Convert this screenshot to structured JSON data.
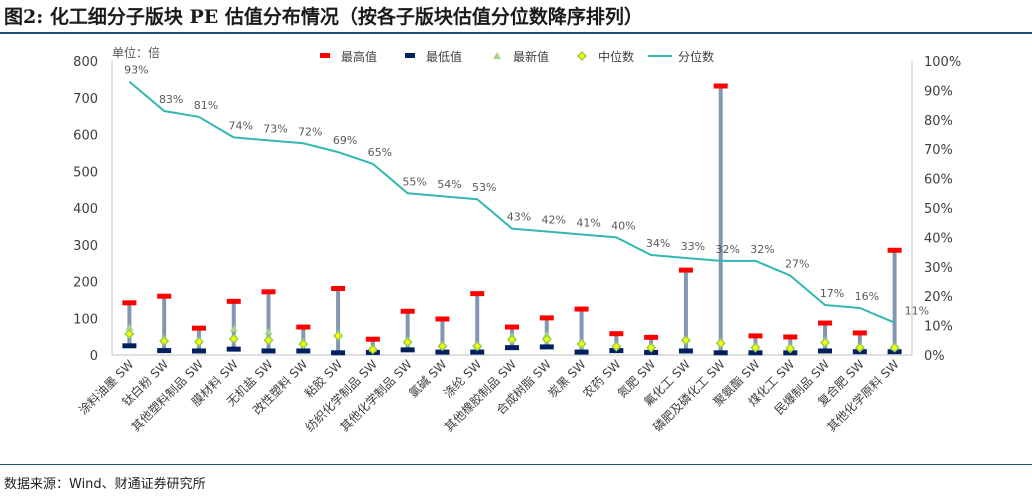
{
  "figure_title": "图2: 化工细分子版块 PE 估值分布情况（按各子版块估值分位数降序排列）",
  "source_note": "数据来源：Wind、财通证券研究所",
  "chart_data": {
    "type": "line",
    "unit_label": "单位：倍",
    "categories": [
      "涂料油墨 SW",
      "钛白粉 SW",
      "其他塑料制品 SW",
      "膜材料 SW",
      "无机盐 SW",
      "改性塑料 SW",
      "粘胶 SW",
      "纺织化学制品 SW",
      "其他化学制品 SW",
      "氯碱 SW",
      "涤纶 SW",
      "其他橡胶制品 SW",
      "合成树脂 SW",
      "炭黑 SW",
      "农药 SW",
      "氮肥 SW",
      "氟化工 SW",
      "磷肥及磷化工 SW",
      "聚氨酯 SW",
      "煤化工 SW",
      "民爆制品 SW",
      "复合肥 SW",
      "其他化学原料 SW"
    ],
    "left_axis": {
      "ylim": [
        0,
        800
      ],
      "ticks": [
        "0",
        "100",
        "200",
        "300",
        "400",
        "500",
        "600",
        "700",
        "800"
      ]
    },
    "right_axis": {
      "ylim": [
        0,
        100
      ],
      "ticks": [
        "0%",
        "10%",
        "20%",
        "30%",
        "40%",
        "50%",
        "60%",
        "70%",
        "80%",
        "90%",
        "100%"
      ]
    },
    "legend_placement": "top",
    "grid": false,
    "series": [
      {
        "name": "最高值",
        "axis": "left",
        "marker": "bar-dash",
        "color": "#ff0000",
        "values": [
          142,
          160,
          73,
          146,
          172,
          76,
          181,
          43,
          119,
          98,
          167,
          76,
          101,
          125,
          58,
          48,
          231,
          732,
          52,
          49,
          87,
          60,
          285
        ]
      },
      {
        "name": "最低值",
        "axis": "left",
        "marker": "bar-dash",
        "color": "#002060",
        "values": [
          25,
          12,
          11,
          16,
          11,
          11,
          6,
          7,
          14,
          8,
          8,
          20,
          22,
          8,
          12,
          7,
          11,
          6,
          6,
          6,
          11,
          9,
          9
        ]
      },
      {
        "name": "最新值",
        "axis": "left",
        "marker": "triangle",
        "color": "#a9d18e",
        "values": [
          74,
          45,
          40,
          71,
          63,
          36,
          58,
          16,
          40,
          26,
          25,
          51,
          55,
          33,
          27,
          22,
          43,
          37,
          24,
          23,
          40,
          23,
          21
        ]
      },
      {
        "name": "中位数",
        "axis": "left",
        "marker": "diamond",
        "color": "#92d050",
        "values": [
          57,
          38,
          36,
          44,
          40,
          30,
          52,
          15,
          35,
          24,
          24,
          42,
          43,
          30,
          23,
          20,
          40,
          32,
          20,
          18,
          34,
          20,
          20
        ]
      },
      {
        "name": "分位数",
        "axis": "right",
        "marker": "line",
        "color": "#33b8b0",
        "values": [
          93,
          83,
          81,
          74,
          73,
          72,
          69,
          65,
          55,
          54,
          53,
          43,
          42,
          41,
          40,
          34,
          33,
          32,
          32,
          27,
          17,
          16,
          11
        ],
        "labels": [
          "93%",
          "83%",
          "81%",
          "74%",
          "73%",
          "72%",
          "69%",
          "65%",
          "55%",
          "54%",
          "53%",
          "43%",
          "42%",
          "41%",
          "40%",
          "34%",
          "33%",
          "32%",
          "32%",
          "27%",
          "17%",
          "16%",
          "11%"
        ]
      }
    ]
  }
}
